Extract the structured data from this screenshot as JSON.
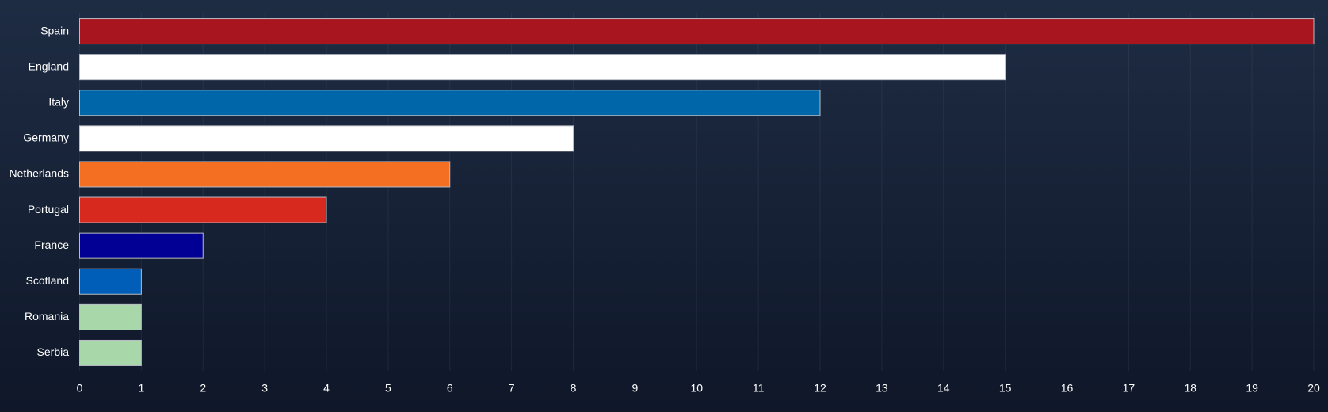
{
  "chart_data": {
    "type": "hbar",
    "categories": [
      "Spain",
      "England",
      "Italy",
      "Germany",
      "Netherlands",
      "Portugal",
      "France",
      "Scotland",
      "Romania",
      "Serbia"
    ],
    "values": [
      20,
      15,
      12,
      8,
      6,
      4,
      2,
      1,
      1,
      1
    ],
    "colors": [
      "#a8151e",
      "#ffffff",
      "#0066aa",
      "#ffffff",
      "#f46f22",
      "#d8291f",
      "#020094",
      "#005eb8",
      "#a8d8aa",
      "#a8d8aa"
    ],
    "xlim": [
      0,
      20
    ],
    "xticks": [
      0,
      1,
      2,
      3,
      4,
      5,
      6,
      7,
      8,
      9,
      10,
      11,
      12,
      13,
      14,
      15,
      16,
      17,
      18,
      19,
      20
    ],
    "grid": true
  }
}
